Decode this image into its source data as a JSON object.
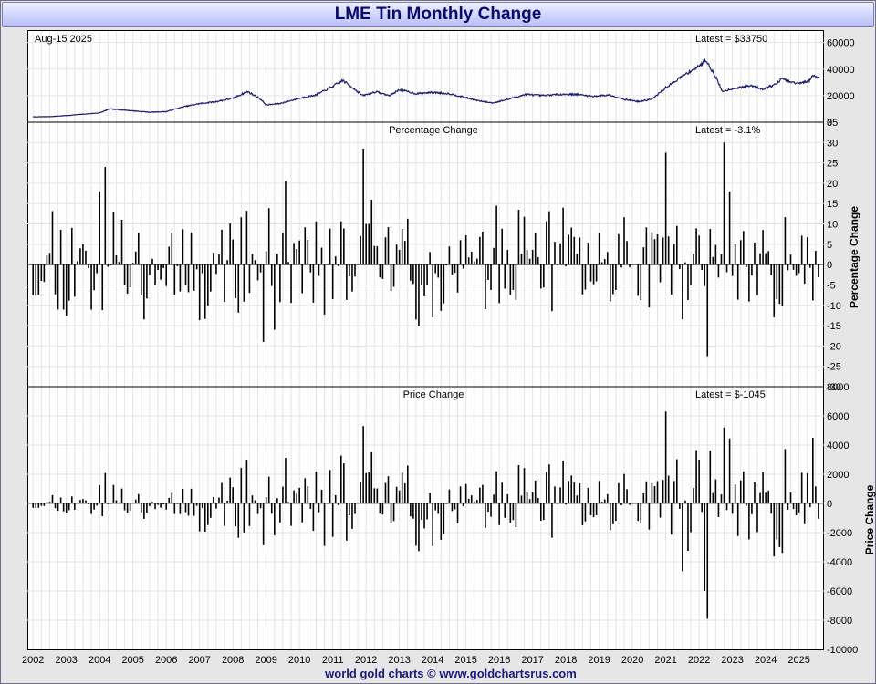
{
  "page": {
    "title": "LME Tin Monthly Change",
    "credit": "world gold charts © www.goldchartsrus.com"
  },
  "colors": {
    "line": "#1a1a6e",
    "bars": "#000000",
    "grid": "#e4e4ea",
    "title": "#0b0b6e"
  },
  "chart_data": [
    {
      "type": "line",
      "name": "price-panel",
      "date_label": "Aug-15  2025",
      "latest_label": "Latest = $33750",
      "xlim": [
        2001.83,
        2025.75
      ],
      "ylim": [
        0,
        68000
      ],
      "yticks": [
        0,
        20000,
        40000,
        60000
      ],
      "anchors_x": [
        2002.0,
        2002.5,
        2003.0,
        2003.5,
        2004.0,
        2004.3,
        2004.8,
        2005.5,
        2006.0,
        2006.5,
        2007.0,
        2007.5,
        2008.0,
        2008.3,
        2008.45,
        2008.8,
        2009.0,
        2009.4,
        2010.0,
        2010.5,
        2011.0,
        2011.3,
        2011.6,
        2011.9,
        2012.3,
        2012.7,
        2013.0,
        2013.5,
        2014.0,
        2014.5,
        2015.0,
        2015.4,
        2015.8,
        2016.3,
        2016.8,
        2017.3,
        2017.8,
        2018.3,
        2018.8,
        2019.3,
        2019.8,
        2020.2,
        2020.6,
        2021.0,
        2021.4,
        2021.8,
        2022.0,
        2022.2,
        2022.5,
        2022.7,
        2022.95,
        2023.3,
        2023.6,
        2023.9,
        2024.3,
        2024.5,
        2024.7,
        2025.0,
        2025.3,
        2025.4,
        2025.62
      ],
      "anchors_y": [
        4000,
        4200,
        5000,
        6000,
        7000,
        10000,
        9000,
        7500,
        8000,
        11500,
        14000,
        15500,
        18000,
        21500,
        23000,
        18000,
        13000,
        14000,
        18000,
        20500,
        27000,
        31500,
        26000,
        20000,
        23000,
        20000,
        24500,
        21500,
        22500,
        21500,
        18500,
        16000,
        14500,
        17500,
        21000,
        20000,
        21000,
        21000,
        19500,
        20500,
        17000,
        15500,
        17500,
        26000,
        33000,
        39500,
        42000,
        47000,
        34000,
        23000,
        25000,
        26500,
        27500,
        25000,
        28500,
        33000,
        30500,
        29000,
        31000,
        35000,
        33750
      ],
      "seed": 7
    },
    {
      "type": "bar",
      "name": "percentage-change-panel",
      "title": "Percentage Change",
      "latest_label": "Latest = -3.1%",
      "ylabel": "Percentage Change",
      "xlim": [
        2001.83,
        2025.75
      ],
      "ylim": [
        -30,
        35
      ],
      "yticks": [
        -30,
        -25,
        -20,
        -15,
        -10,
        -5,
        0,
        5,
        10,
        15,
        20,
        25,
        30,
        35
      ],
      "start": 2002.0,
      "step": 0.083333,
      "seed": 11,
      "fixed": {
        "2004.00": 18.0,
        "2004.17": 24.0,
        "2008.92": -19.0,
        "2009.25": -16.0,
        "2009.58": 20.5,
        "2011.92": 28.5,
        "2021.00": 27.5,
        "2022.25": -22.5,
        "2022.75": 30.0,
        "2022.92": 18.0,
        "2025.58": -3.1
      }
    },
    {
      "type": "bar",
      "name": "price-change-panel",
      "title": "Price Change",
      "latest_label": "Latest = $-1045",
      "ylabel": "Price Change",
      "xlim": [
        2001.83,
        2025.75
      ],
      "ylim": [
        -10000,
        8000
      ],
      "yticks": [
        -10000,
        -8000,
        -6000,
        -4000,
        -2000,
        0,
        2000,
        4000,
        6000,
        8000
      ],
      "fixed": {
        "2011.92": 5300,
        "2021.00": 6300,
        "2022.25": -7900,
        "2022.17": -6000,
        "2022.75": 5200,
        "2025.42": 4500,
        "2025.58": -1045
      }
    }
  ],
  "x_axis": {
    "tick_labels": [
      "2002",
      "2003",
      "2004",
      "2005",
      "2006",
      "2007",
      "2008",
      "2009",
      "2010",
      "2011",
      "2012",
      "2013",
      "2014",
      "2015",
      "2016",
      "2017",
      "2018",
      "2019",
      "2020",
      "2021",
      "2022",
      "2023",
      "2024",
      "2025"
    ]
  }
}
